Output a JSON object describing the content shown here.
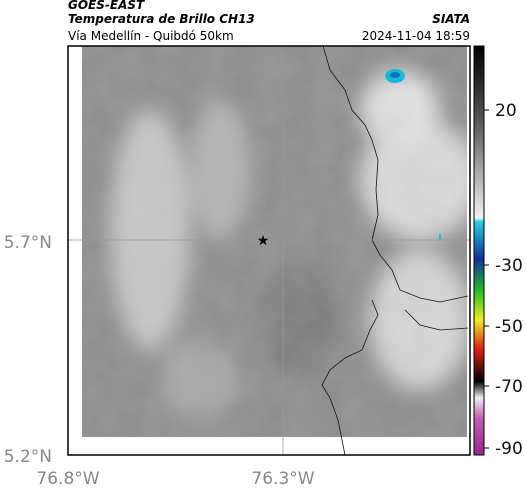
{
  "header": {
    "source": "GOES-EAST",
    "title": "Temperatura de Brillo CH13",
    "agency": "SIATA",
    "subtitle": "Vía Medellín - Quibdó 50km",
    "timestamp": "2024-11-04 18:59"
  },
  "map": {
    "lat_labels": [
      "5.7°N",
      "5.2°N"
    ],
    "lon_labels": [
      "76.8°W",
      "76.3°W"
    ]
  },
  "colorbar": {
    "ticks": [
      20,
      -30,
      -50,
      -70,
      -90
    ]
  }
}
